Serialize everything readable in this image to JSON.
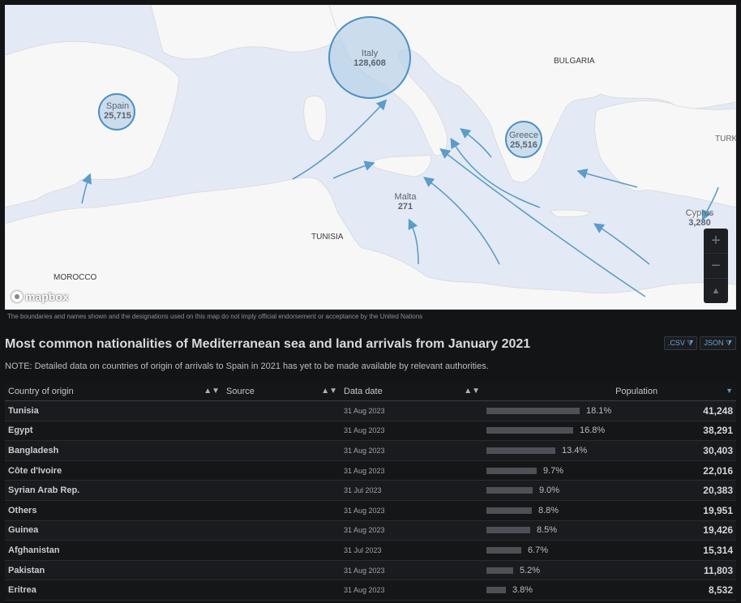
{
  "map": {
    "labels": {
      "bulgaria": "BULGARIA",
      "turkey": "TURK",
      "tunisia": "TUNISIA",
      "morocco": "MOROCCO"
    },
    "bubbles": [
      {
        "id": "italy",
        "country": "Italy",
        "count": "128,608"
      },
      {
        "id": "spain",
        "country": "Spain",
        "count": "25,715"
      },
      {
        "id": "greece",
        "country": "Greece",
        "count": "25,516"
      },
      {
        "id": "malta",
        "country": "Malta",
        "count": "271"
      },
      {
        "id": "cyprus",
        "country": "Cyprus",
        "count": "3,280"
      }
    ],
    "zoom_in": "+",
    "zoom_out": "−",
    "compass": "▲",
    "logo": "mapbox",
    "disclaimer": "The boundaries and names shown and the designations used on this map do not imply official endorsement or acceptance by the United Nations"
  },
  "section": {
    "title": "Most common nationalities of Mediterranean sea and land arrivals from January 2021",
    "note": "NOTE: Detailed data on countries of origin of arrivals to Spain in 2021 has yet to be made available by relevant authorities.",
    "csv_label": ".CSV",
    "json_label": "JSON"
  },
  "table": {
    "headers": {
      "country": "Country of origin",
      "source": "Source",
      "date": "Data date",
      "population": "Population"
    },
    "rows": [
      {
        "country": "Tunisia",
        "date": "31 Aug 2023",
        "pct": "18.1%",
        "share": 18.1,
        "value": "41,248"
      },
      {
        "country": "Egypt",
        "date": "31 Aug 2023",
        "pct": "16.8%",
        "share": 16.8,
        "value": "38,291"
      },
      {
        "country": "Bangladesh",
        "date": "31 Aug 2023",
        "pct": "13.4%",
        "share": 13.4,
        "value": "30,403"
      },
      {
        "country": "Côte d'Ivoire",
        "date": "31 Aug 2023",
        "pct": "9.7%",
        "share": 9.7,
        "value": "22,016"
      },
      {
        "country": "Syrian Arab Rep.",
        "date": "31 Jul 2023",
        "pct": "9.0%",
        "share": 9.0,
        "value": "20,383"
      },
      {
        "country": "Others",
        "date": "31 Aug 2023",
        "pct": "8.8%",
        "share": 8.8,
        "value": "19,951"
      },
      {
        "country": "Guinea",
        "date": "31 Aug 2023",
        "pct": "8.5%",
        "share": 8.5,
        "value": "19,426"
      },
      {
        "country": "Afghanistan",
        "date": "31 Jul 2023",
        "pct": "6.7%",
        "share": 6.7,
        "value": "15,314"
      },
      {
        "country": "Pakistan",
        "date": "31 Aug 2023",
        "pct": "5.2%",
        "share": 5.2,
        "value": "11,803"
      },
      {
        "country": "Eritrea",
        "date": "31 Aug 2023",
        "pct": "3.8%",
        "share": 3.8,
        "value": "8,532"
      }
    ]
  },
  "colors": {
    "sea": "#e3eaf5",
    "land": "#f7f7f7",
    "bubble_fill": "#b4cfe6",
    "bubble_stroke": "#4d8fc4",
    "arrow": "#5b9cc9",
    "bar": "#4d5054"
  }
}
